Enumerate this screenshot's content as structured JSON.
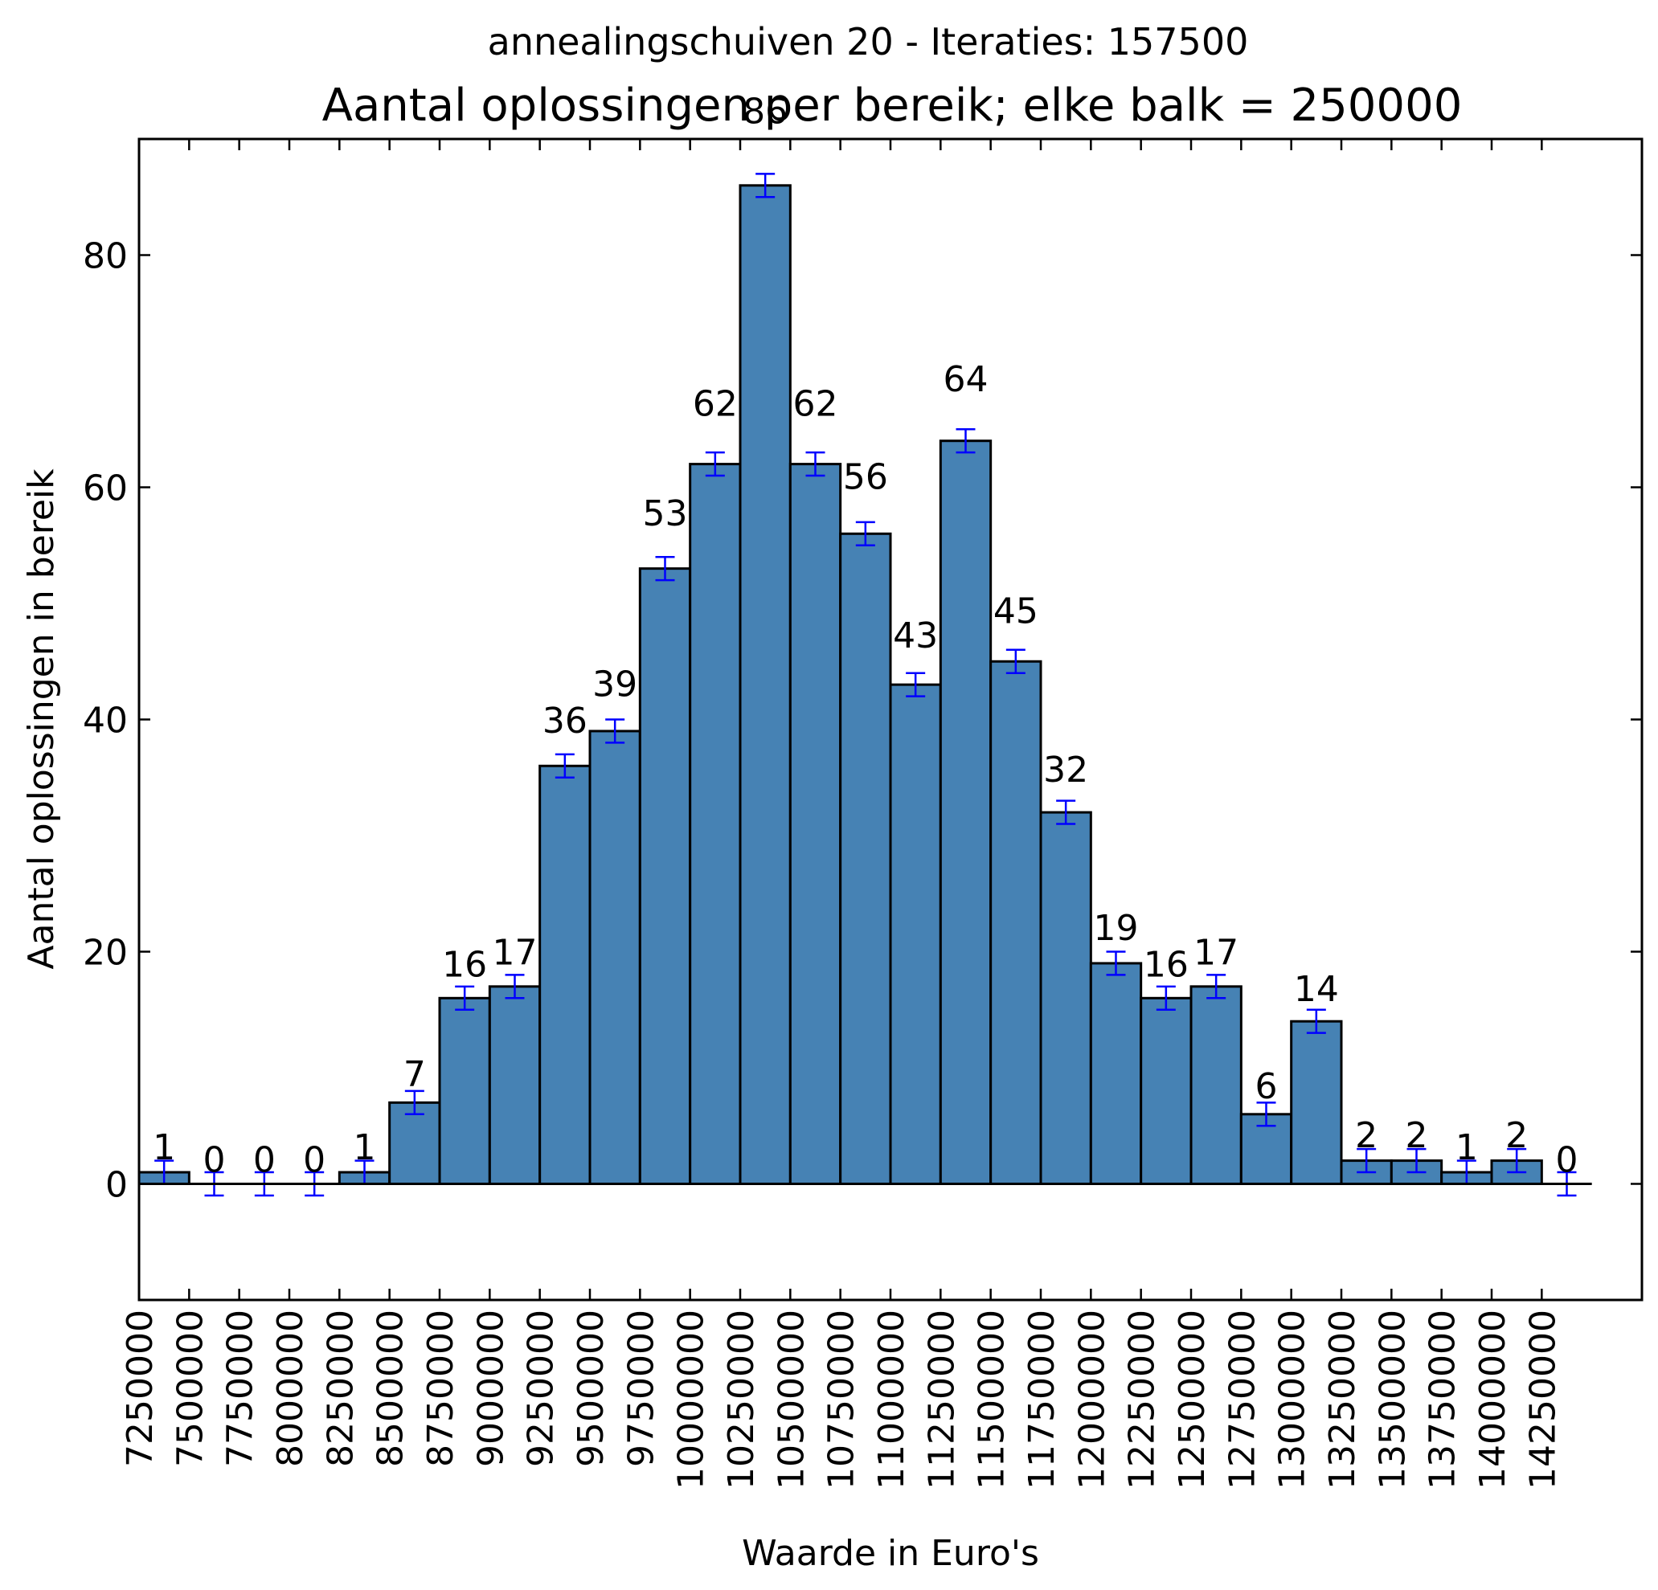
{
  "chart_data": {
    "type": "bar",
    "suptitle": "annealingschuiven 20 - Iteraties: 157500",
    "title": "Aantal oplossingen per bereik; elke balk = 250000",
    "xlabel": "Waarde in Euro's",
    "ylabel": "Aantal oplossingen in bereik",
    "ylim": [
      -10,
      90
    ],
    "yticks": [
      0,
      20,
      40,
      60,
      80
    ],
    "xlim": [
      7250000,
      14750000
    ],
    "xticks": [
      7250000,
      7500000,
      7750000,
      8000000,
      8250000,
      8500000,
      8750000,
      9000000,
      9250000,
      9500000,
      9750000,
      10000000,
      10250000,
      10500000,
      10750000,
      11000000,
      11250000,
      11500000,
      11750000,
      12000000,
      12250000,
      12500000,
      12750000,
      13000000,
      13250000,
      13500000,
      13750000,
      14000000,
      14250000
    ],
    "bin_width": 250000,
    "bin_starts": [
      7250000,
      7500000,
      7750000,
      8000000,
      8250000,
      8500000,
      8750000,
      9000000,
      9250000,
      9500000,
      9750000,
      10000000,
      10250000,
      10500000,
      10750000,
      11000000,
      11250000,
      11500000,
      11750000,
      12000000,
      12250000,
      12500000,
      12750000,
      13000000,
      13250000,
      13500000,
      13750000,
      14000000,
      14250000
    ],
    "values": [
      1,
      0,
      0,
      0,
      1,
      7,
      16,
      17,
      36,
      39,
      53,
      62,
      86,
      62,
      56,
      43,
      64,
      45,
      32,
      19,
      16,
      17,
      6,
      14,
      2,
      2,
      1,
      2,
      0
    ],
    "error": 1,
    "bar_color": "#4682b4",
    "errorbar_color": "#0000ff",
    "grid": false,
    "legend": "none"
  }
}
